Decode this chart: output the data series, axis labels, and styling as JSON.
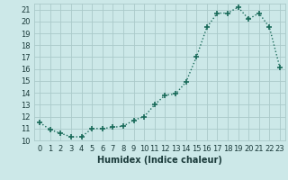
{
  "x": [
    0,
    1,
    2,
    3,
    4,
    5,
    6,
    7,
    8,
    9,
    10,
    11,
    12,
    13,
    14,
    15,
    16,
    17,
    18,
    19,
    20,
    21,
    22,
    23
  ],
  "y": [
    11.5,
    10.9,
    10.6,
    10.3,
    10.3,
    11.0,
    11.0,
    11.1,
    11.2,
    11.7,
    12.0,
    13.0,
    13.8,
    13.9,
    14.9,
    17.0,
    19.5,
    20.7,
    20.7,
    21.2,
    20.2,
    20.7,
    19.5,
    16.1
  ],
  "xlabel": "Humidex (Indice chaleur)",
  "xlim": [
    -0.5,
    23.5
  ],
  "ylim": [
    10,
    21.5
  ],
  "yticks": [
    10,
    11,
    12,
    13,
    14,
    15,
    16,
    17,
    18,
    19,
    20,
    21
  ],
  "xticks": [
    0,
    1,
    2,
    3,
    4,
    5,
    6,
    7,
    8,
    9,
    10,
    11,
    12,
    13,
    14,
    15,
    16,
    17,
    18,
    19,
    20,
    21,
    22,
    23
  ],
  "line_color": "#1a6b5a",
  "marker": "+",
  "marker_size": 4,
  "bg_color": "#cce8e8",
  "grid_color": "#aacaca",
  "font_color": "#1a3a3a",
  "line_width": 1.0,
  "label_fontsize": 7,
  "tick_fontsize": 6
}
